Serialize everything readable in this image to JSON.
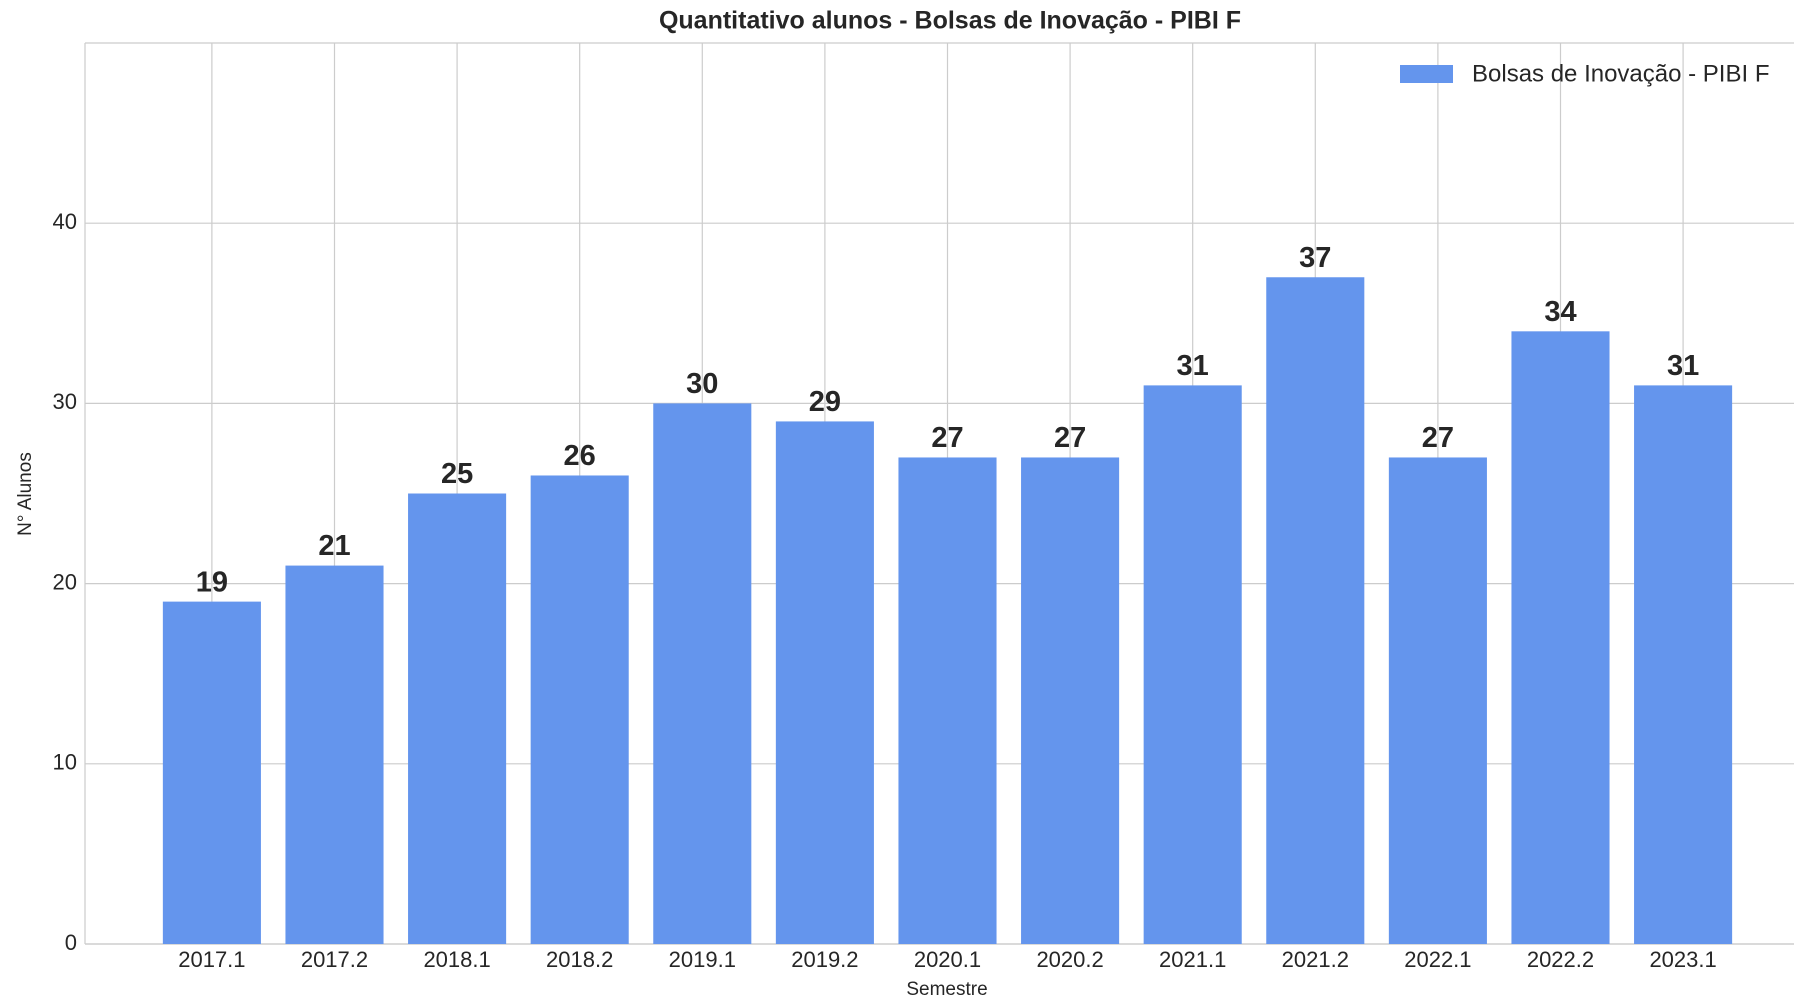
{
  "chart_data": {
    "type": "bar",
    "title": "Quantitativo alunos - Bolsas de Inovação - PIBI F",
    "xlabel": "Semestre",
    "ylabel": "N° Alunos",
    "categories": [
      "2017.1",
      "2017.2",
      "2018.1",
      "2018.2",
      "2019.1",
      "2019.2",
      "2020.1",
      "2020.2",
      "2021.1",
      "2021.2",
      "2022.1",
      "2022.2",
      "2023.1"
    ],
    "series": [
      {
        "name": "Bolsas de Inovação - PIBI F",
        "color": "#6495ed",
        "values": [
          19,
          21,
          25,
          26,
          30,
          29,
          27,
          27,
          31,
          37,
          27,
          34,
          31
        ]
      }
    ],
    "ylim": [
      0,
      50
    ],
    "yticks": [
      0,
      10,
      20,
      30,
      40
    ],
    "grid": true,
    "legend": "upper right"
  }
}
